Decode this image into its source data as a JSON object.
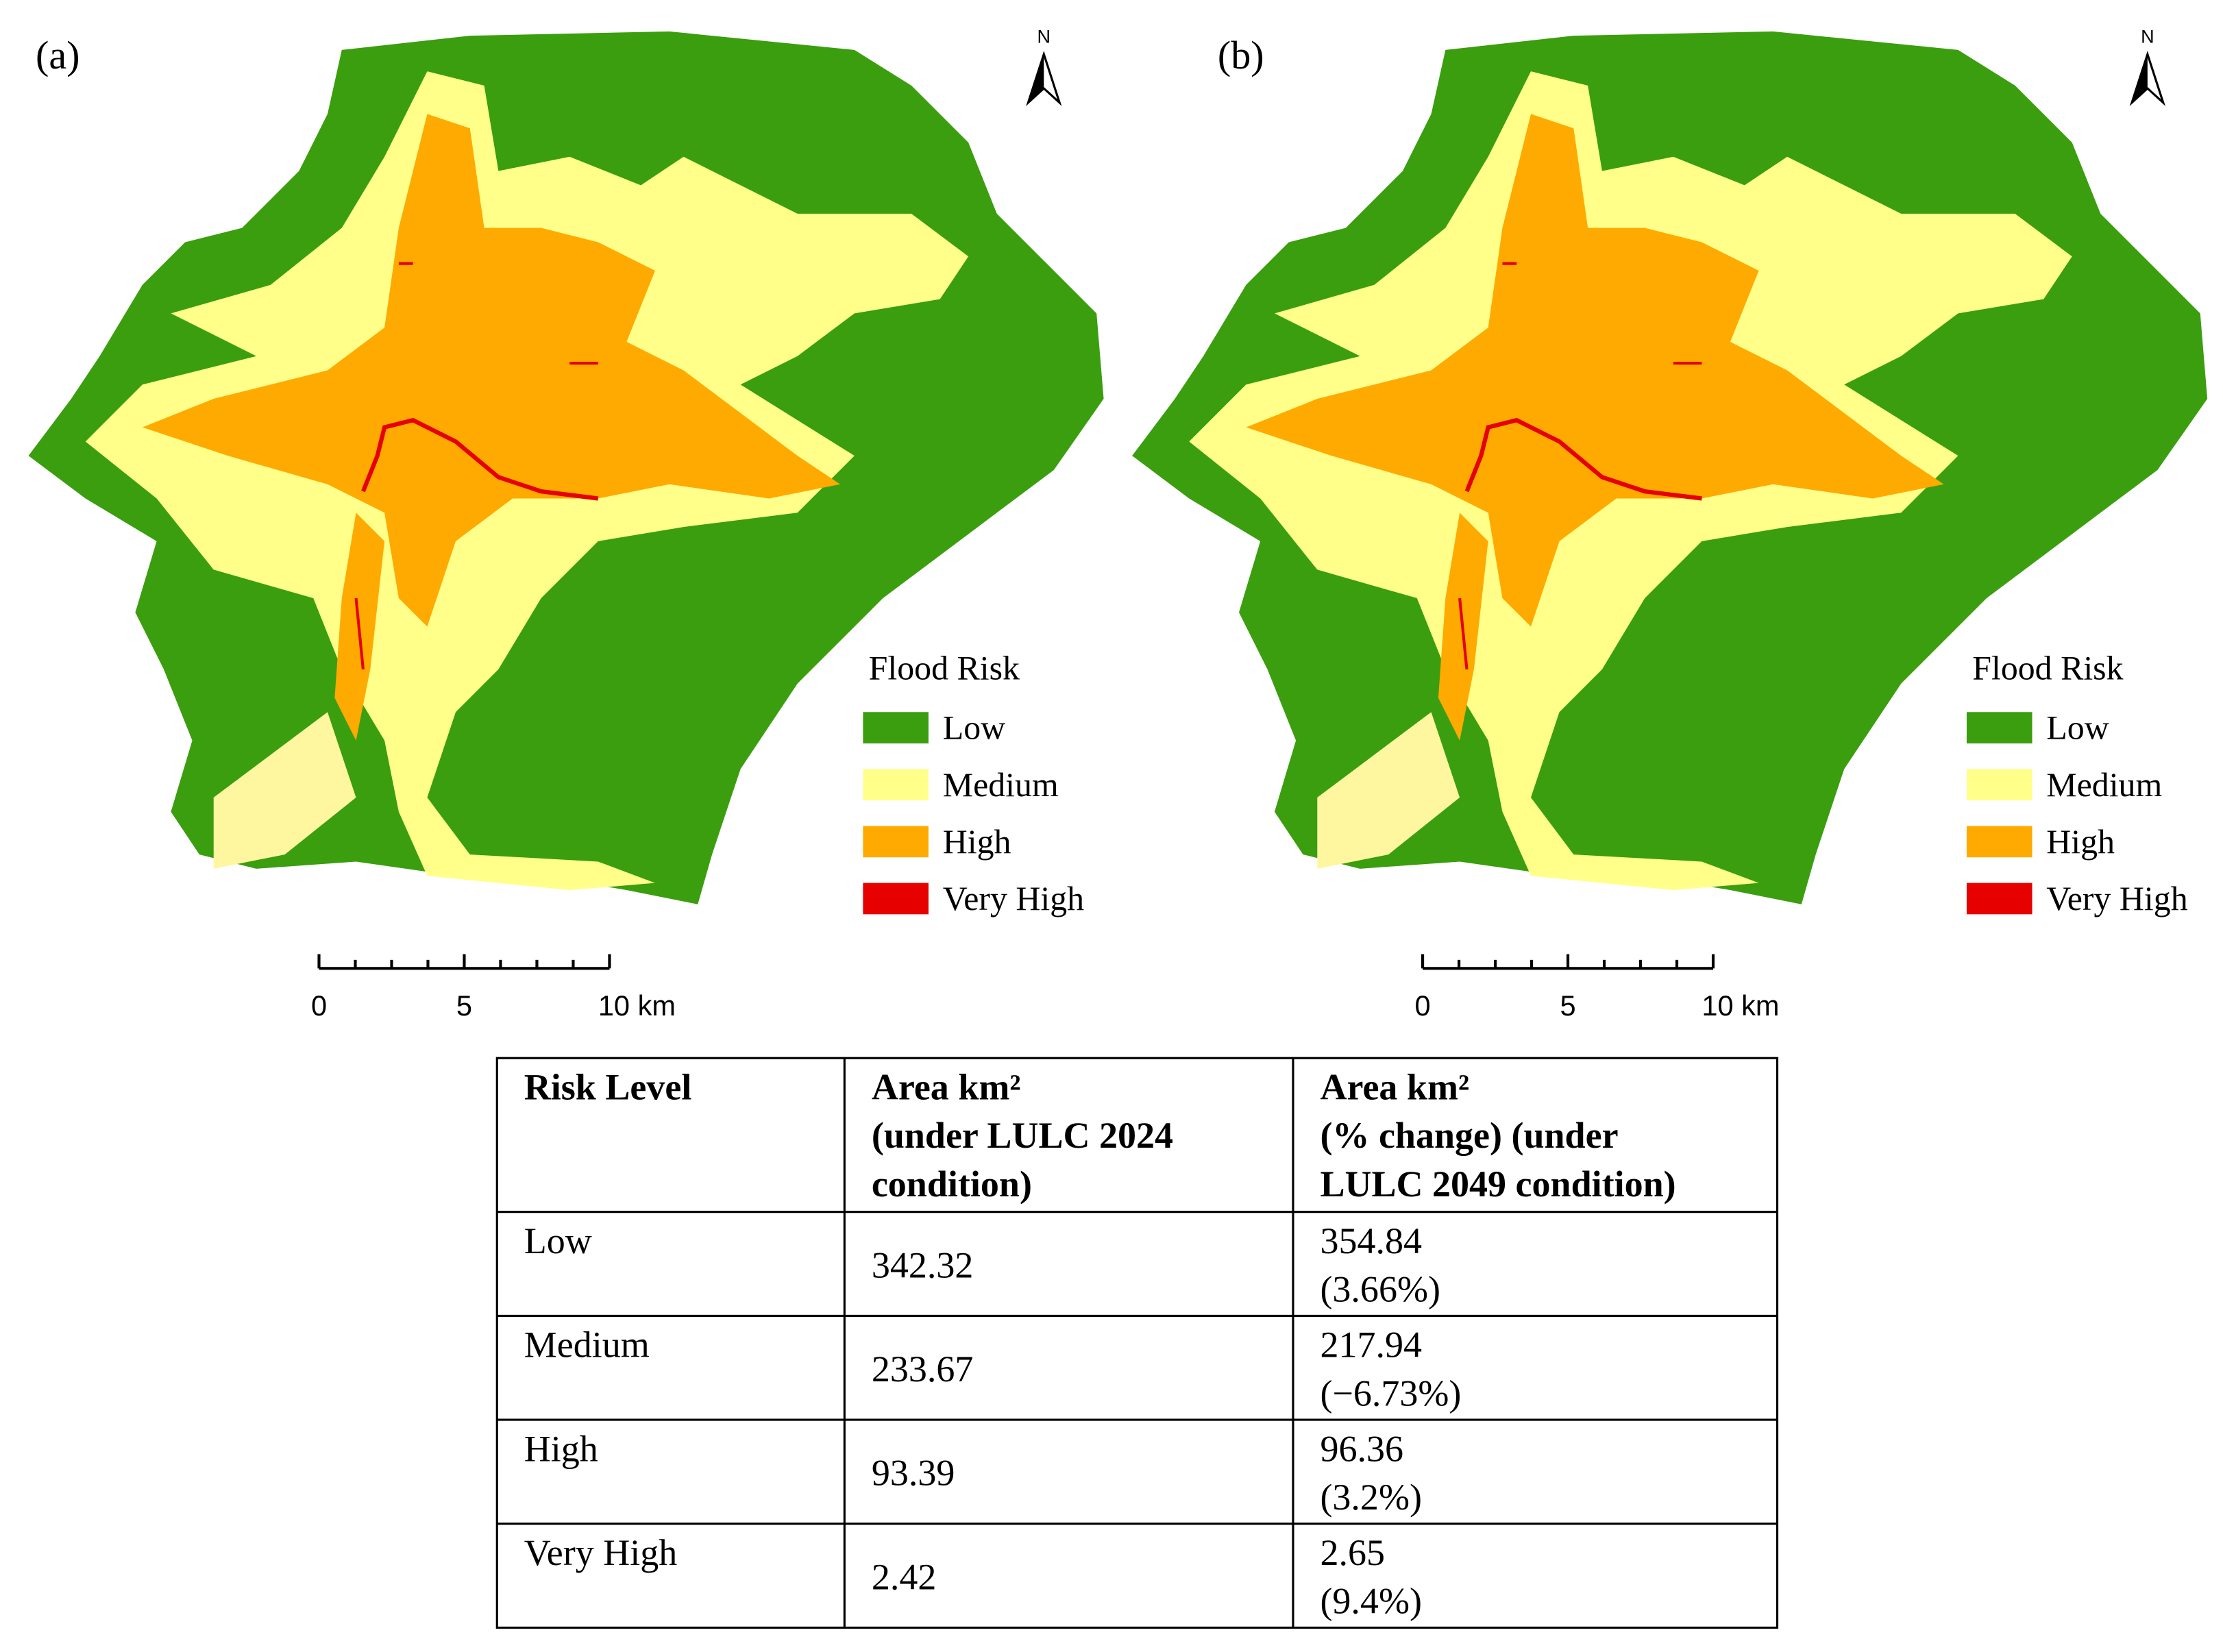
{
  "panels": [
    {
      "label": "(a)",
      "north": "N",
      "legend_title": "Flood Risk",
      "legend": [
        {
          "name": "Low",
          "color": "#3a9e0e"
        },
        {
          "name": "Medium",
          "color": "#ffff8a"
        },
        {
          "name": "High",
          "color": "#ffaa00"
        },
        {
          "name": "Very High",
          "color": "#e60000"
        }
      ],
      "scale_labels": [
        "0",
        "5",
        "10 km"
      ]
    },
    {
      "label": "(b)",
      "north": "N",
      "legend_title": "Flood Risk",
      "legend": [
        {
          "name": "Low",
          "color": "#3a9e0e"
        },
        {
          "name": "Medium",
          "color": "#ffff8a"
        },
        {
          "name": "High",
          "color": "#ffaa00"
        },
        {
          "name": "Very High",
          "color": "#e60000"
        }
      ],
      "scale_labels": [
        "0",
        "5",
        "10 km"
      ]
    }
  ],
  "table": {
    "header": [
      [
        "Risk Level"
      ],
      [
        "Area km²",
        "(under LULC 2024",
        "condition)"
      ],
      [
        "Area km²",
        "(% change) (under",
        "LULC 2049 condition)"
      ]
    ],
    "rows": [
      [
        "Low",
        "342.32",
        [
          "354.84",
          "(3.66%)"
        ]
      ],
      [
        "Medium",
        "233.67",
        [
          "217.94",
          "(−6.73%)"
        ]
      ],
      [
        "High",
        "93.39",
        [
          "96.36",
          "(3.2%)"
        ]
      ],
      [
        "Very High",
        "2.42",
        [
          "2.65",
          "(9.4%)"
        ]
      ]
    ]
  }
}
